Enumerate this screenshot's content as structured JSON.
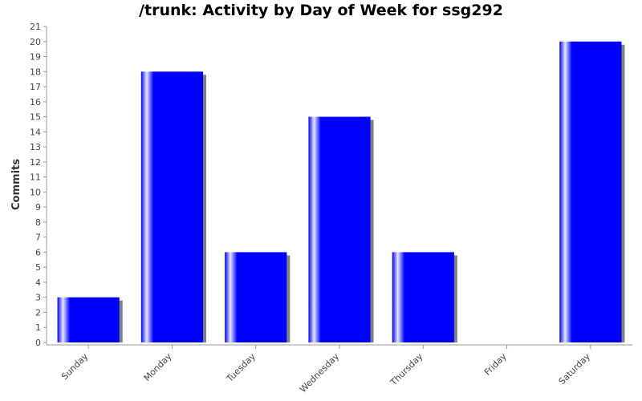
{
  "chart_data": {
    "type": "bar",
    "title": "/trunk: Activity by Day of Week for ssg292",
    "xlabel": "",
    "ylabel": "Commits",
    "categories": [
      "Sunday",
      "Monday",
      "Tuesday",
      "Wednesday",
      "Thursday",
      "Friday",
      "Saturday"
    ],
    "values": [
      3,
      18,
      6,
      15,
      6,
      0,
      20
    ],
    "ylim": [
      0,
      21
    ],
    "yticks": [
      0,
      1,
      2,
      3,
      4,
      5,
      6,
      7,
      8,
      9,
      10,
      11,
      12,
      13,
      14,
      15,
      16,
      17,
      18,
      19,
      20,
      21
    ],
    "bar_color": "#0000ff",
    "shadow_color": "#808080",
    "grid": false,
    "legend": "none"
  }
}
